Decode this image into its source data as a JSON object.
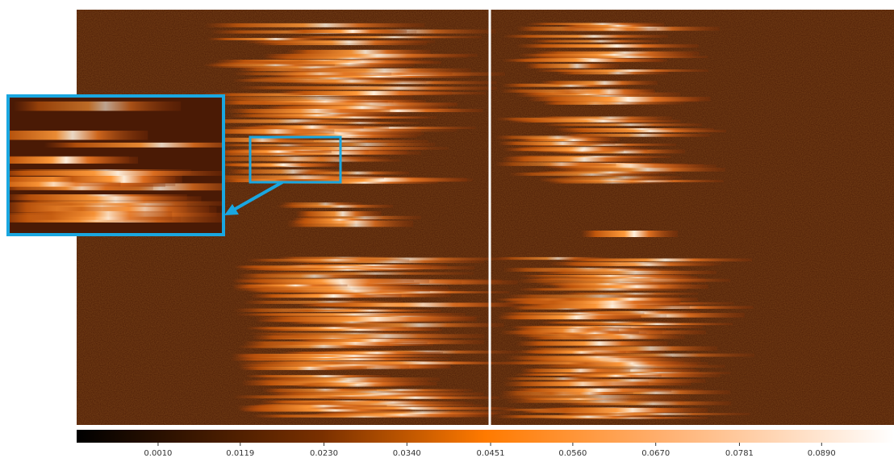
{
  "colorbar": {
    "lim": [
      -0.0098,
      0.0986
    ],
    "ticks": [
      {
        "value": 0.001,
        "label": "0.0010"
      },
      0.0119,
      {
        "value": 0.023,
        "label": "0.0230"
      },
      {
        "value": 0.034,
        "label": "0.0340"
      },
      0.0451,
      {
        "value": 0.056,
        "label": "0.0560"
      },
      {
        "value": 0.067,
        "label": "0.0670"
      },
      0.0781,
      {
        "value": 0.089,
        "label": "0.0890"
      }
    ]
  }
}
